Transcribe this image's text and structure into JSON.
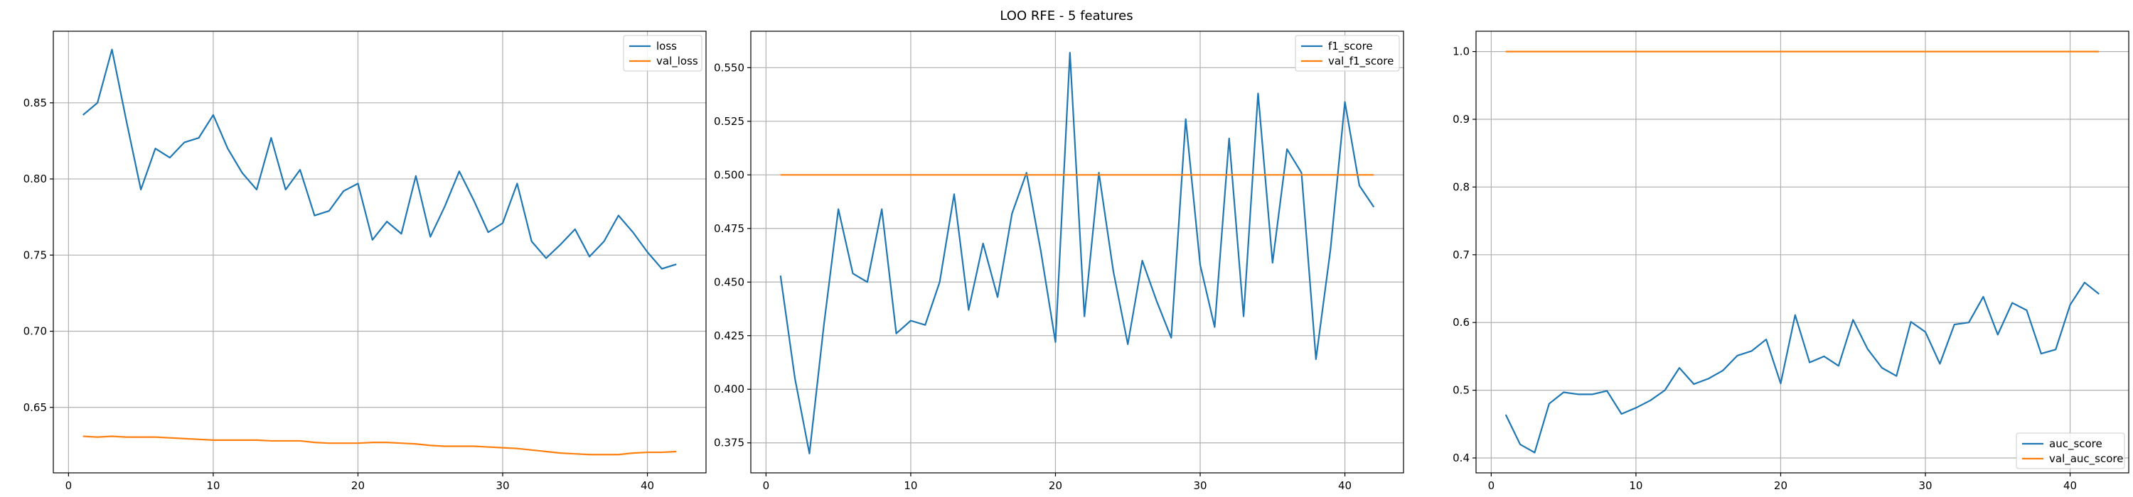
{
  "figure": {
    "title": "LOO RFE - 5 features"
  },
  "colors": {
    "train": "#1f77b4",
    "val": "#ff7f0e",
    "grid": "#b0b0b0",
    "axes": "#000000"
  },
  "chart_data": [
    {
      "type": "line",
      "x": [
        1,
        2,
        3,
        4,
        5,
        6,
        7,
        8,
        9,
        10,
        11,
        12,
        13,
        14,
        15,
        16,
        17,
        18,
        19,
        20,
        21,
        22,
        23,
        24,
        25,
        26,
        27,
        28,
        29,
        30,
        31,
        32,
        33,
        34,
        35,
        36,
        37,
        38,
        39,
        40,
        41,
        42
      ],
      "series": [
        {
          "name": "loss",
          "color": "#1f77b4",
          "values": [
            0.842,
            0.85,
            0.885,
            0.838,
            0.793,
            0.82,
            0.814,
            0.824,
            0.827,
            0.842,
            0.82,
            0.804,
            0.793,
            0.827,
            0.793,
            0.806,
            0.776,
            0.779,
            0.792,
            0.797,
            0.76,
            0.772,
            0.764,
            0.802,
            0.762,
            0.782,
            0.805,
            0.786,
            0.765,
            0.771,
            0.797,
            0.759,
            0.748,
            0.757,
            0.767,
            0.749,
            0.759,
            0.776,
            0.765,
            0.752,
            0.741,
            0.744
          ]
        },
        {
          "name": "val_loss",
          "color": "#ff7f0e",
          "values": [
            0.631,
            0.6305,
            0.631,
            0.6305,
            0.6305,
            0.6305,
            0.63,
            0.6295,
            0.629,
            0.6285,
            0.6285,
            0.6285,
            0.6285,
            0.628,
            0.628,
            0.628,
            0.627,
            0.6265,
            0.6265,
            0.6265,
            0.627,
            0.627,
            0.6265,
            0.626,
            0.625,
            0.6245,
            0.6245,
            0.6245,
            0.624,
            0.6235,
            0.623,
            0.622,
            0.621,
            0.62,
            0.6195,
            0.619,
            0.619,
            0.619,
            0.62,
            0.6205,
            0.6205,
            0.621
          ]
        }
      ],
      "xlim": [
        -1.05,
        44.05
      ],
      "ylim": [
        0.607,
        0.897
      ],
      "xticks": [
        0,
        10,
        20,
        30,
        40
      ],
      "yticks": [
        0.65,
        0.7,
        0.75,
        0.8,
        0.85
      ],
      "ytick_labels": [
        "0.65",
        "0.70",
        "0.75",
        "0.80",
        "0.85"
      ],
      "grid": true,
      "legend_position": "upper right"
    },
    {
      "type": "line",
      "x": [
        1,
        2,
        3,
        4,
        5,
        6,
        7,
        8,
        9,
        10,
        11,
        12,
        13,
        14,
        15,
        16,
        17,
        18,
        19,
        20,
        21,
        22,
        23,
        24,
        25,
        26,
        27,
        28,
        29,
        30,
        31,
        32,
        33,
        34,
        35,
        36,
        37,
        38,
        39,
        40,
        41,
        42
      ],
      "series": [
        {
          "name": "f1_score",
          "color": "#1f77b4",
          "values": [
            0.453,
            0.405,
            0.37,
            0.43,
            0.484,
            0.454,
            0.45,
            0.484,
            0.426,
            0.432,
            0.43,
            0.45,
            0.491,
            0.437,
            0.468,
            0.443,
            0.482,
            0.501,
            0.464,
            0.422,
            0.557,
            0.434,
            0.501,
            0.455,
            0.421,
            0.46,
            0.441,
            0.424,
            0.526,
            0.458,
            0.429,
            0.517,
            0.434,
            0.538,
            0.459,
            0.512,
            0.501,
            0.414,
            0.465,
            0.534,
            0.495,
            0.485
          ]
        },
        {
          "name": "val_f1_score",
          "color": "#ff7f0e",
          "values": [
            0.5,
            0.5,
            0.5,
            0.5,
            0.5,
            0.5,
            0.5,
            0.5,
            0.5,
            0.5,
            0.5,
            0.5,
            0.5,
            0.5,
            0.5,
            0.5,
            0.5,
            0.5,
            0.5,
            0.5,
            0.5,
            0.5,
            0.5,
            0.5,
            0.5,
            0.5,
            0.5,
            0.5,
            0.5,
            0.5,
            0.5,
            0.5,
            0.5,
            0.5,
            0.5,
            0.5,
            0.5,
            0.5,
            0.5,
            0.5,
            0.5,
            0.5
          ]
        }
      ],
      "xlim": [
        -1.05,
        44.05
      ],
      "ylim": [
        0.361,
        0.567
      ],
      "xticks": [
        0,
        10,
        20,
        30,
        40
      ],
      "yticks": [
        0.375,
        0.4,
        0.425,
        0.45,
        0.475,
        0.5,
        0.525,
        0.55
      ],
      "ytick_labels": [
        "0.375",
        "0.400",
        "0.425",
        "0.450",
        "0.475",
        "0.500",
        "0.525",
        "0.550"
      ],
      "grid": true,
      "legend_position": "upper right"
    },
    {
      "type": "line",
      "x": [
        1,
        2,
        3,
        4,
        5,
        6,
        7,
        8,
        9,
        10,
        11,
        12,
        13,
        14,
        15,
        16,
        17,
        18,
        19,
        20,
        21,
        22,
        23,
        24,
        25,
        26,
        27,
        28,
        29,
        30,
        31,
        32,
        33,
        34,
        35,
        36,
        37,
        38,
        39,
        40,
        41,
        42
      ],
      "series": [
        {
          "name": "auc_score",
          "color": "#1f77b4",
          "values": [
            0.464,
            0.42,
            0.408,
            0.48,
            0.497,
            0.494,
            0.494,
            0.499,
            0.465,
            0.474,
            0.485,
            0.5,
            0.533,
            0.509,
            0.517,
            0.529,
            0.551,
            0.558,
            0.575,
            0.51,
            0.611,
            0.541,
            0.55,
            0.536,
            0.604,
            0.561,
            0.533,
            0.521,
            0.601,
            0.586,
            0.539,
            0.597,
            0.6,
            0.638,
            0.582,
            0.629,
            0.618,
            0.554,
            0.56,
            0.626,
            0.659,
            0.642
          ]
        },
        {
          "name": "val_auc_score",
          "color": "#ff7f0e",
          "values": [
            1,
            1,
            1,
            1,
            1,
            1,
            1,
            1,
            1,
            1,
            1,
            1,
            1,
            1,
            1,
            1,
            1,
            1,
            1,
            1,
            1,
            1,
            1,
            1,
            1,
            1,
            1,
            1,
            1,
            1,
            1,
            1,
            1,
            1,
            1,
            1,
            1,
            1,
            1,
            1,
            1,
            1
          ]
        }
      ],
      "xlim": [
        -1.05,
        44.05
      ],
      "ylim": [
        0.378,
        1.03
      ],
      "xticks": [
        0,
        10,
        20,
        30,
        40
      ],
      "yticks": [
        0.4,
        0.5,
        0.6,
        0.7,
        0.8,
        0.9,
        1.0
      ],
      "ytick_labels": [
        "0.4",
        "0.5",
        "0.6",
        "0.7",
        "0.8",
        "0.9",
        "1.0"
      ],
      "grid": true,
      "legend_position": "lower right"
    }
  ]
}
